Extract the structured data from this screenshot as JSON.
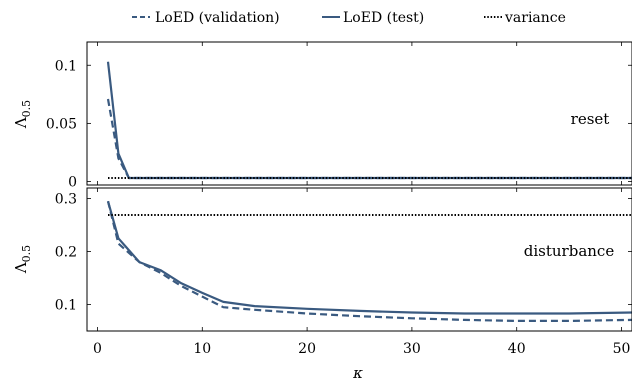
{
  "chart_data": {
    "type": "line",
    "legend": {
      "placement": "top-center",
      "entries": [
        {
          "label": "LoED (validation)",
          "style": "dashed",
          "color": "#3a5a80"
        },
        {
          "label": "LoED (test)",
          "style": "solid",
          "color": "#3a5a80"
        },
        {
          "label": "variance",
          "style": "dotted",
          "color": "#000000"
        }
      ]
    },
    "xlabel": "κ",
    "xlim": [
      -1,
      51
    ],
    "xticks": [
      0,
      10,
      20,
      30,
      40,
      50
    ],
    "xtick_labels": [
      "0",
      "10",
      "20",
      "30",
      "40",
      "50"
    ],
    "panels": [
      {
        "label": "reset",
        "ylabel": "Λ0.5",
        "ylim": [
          -0.003,
          0.12
        ],
        "yticks": [
          0,
          0.05,
          0.1
        ],
        "ytick_labels": [
          "0",
          "0.05",
          "0.1"
        ],
        "series": [
          {
            "name": "LoED (validation)",
            "style": "dashed",
            "x": [
              1,
              2,
              3,
              5,
              10,
              20,
              30,
              40,
              51
            ],
            "y": [
              0.071,
              0.02,
              0.003,
              0.003,
              0.003,
              0.003,
              0.003,
              0.003,
              0.003
            ]
          },
          {
            "name": "LoED (test)",
            "style": "solid",
            "x": [
              1,
              2,
              3,
              5,
              10,
              20,
              30,
              40,
              51
            ],
            "y": [
              0.103,
              0.024,
              0.003,
              0.003,
              0.003,
              0.003,
              0.003,
              0.003,
              0.003
            ]
          },
          {
            "name": "variance",
            "style": "dotted",
            "x": [
              1,
              51
            ],
            "y": [
              0.003,
              0.003
            ]
          }
        ]
      },
      {
        "label": "disturbance",
        "ylabel": "Λ0.5",
        "ylim": [
          0.05,
          0.32
        ],
        "yticks": [
          0.1,
          0.2,
          0.3
        ],
        "ytick_labels": [
          "0.1",
          "0.2",
          "0.3"
        ],
        "series": [
          {
            "name": "LoED (validation)",
            "style": "dashed",
            "x": [
              1,
              2,
              4,
              6,
              8,
              10,
              12,
              15,
              20,
              25,
              30,
              35,
              40,
              45,
              51
            ],
            "y": [
              0.295,
              0.215,
              0.18,
              0.16,
              0.135,
              0.115,
              0.095,
              0.09,
              0.083,
              0.078,
              0.074,
              0.071,
              0.069,
              0.069,
              0.071
            ]
          },
          {
            "name": "LoED (test)",
            "style": "solid",
            "x": [
              1,
              2,
              4,
              6,
              8,
              10,
              12,
              15,
              20,
              25,
              30,
              35,
              40,
              45,
              51
            ],
            "y": [
              0.295,
              0.225,
              0.18,
              0.165,
              0.14,
              0.122,
              0.105,
              0.097,
              0.092,
              0.088,
              0.085,
              0.083,
              0.083,
              0.083,
              0.085
            ]
          },
          {
            "name": "variance",
            "style": "dotted",
            "x": [
              1,
              51
            ],
            "y": [
              0.269,
              0.269
            ]
          }
        ]
      }
    ]
  }
}
